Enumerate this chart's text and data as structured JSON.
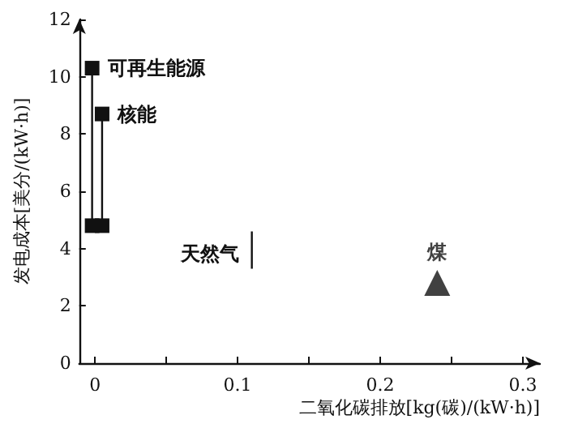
{
  "chart_data": {
    "type": "scatter",
    "xlabel": "二氧化碳排放[kg(碳)/(kW·h)]",
    "ylabel": "发电成本[美分/(kW·h)]",
    "xlim": [
      -0.011,
      0.312
    ],
    "ylim": [
      0,
      12
    ],
    "xticks": [
      0,
      {
        "value": 0.05,
        "label": null
      },
      0.1,
      {
        "value": 0.15,
        "label": null
      },
      0.2,
      {
        "value": 0.25,
        "label": null
      },
      0.3
    ],
    "yticks": [
      0,
      2,
      4,
      6,
      8,
      10,
      12
    ],
    "grid": false,
    "legend": false,
    "series": [
      {
        "name": "可再生能源",
        "type": "line",
        "marker": "square",
        "color": "#111111",
        "x": [
          -0.002,
          -0.002
        ],
        "values": [
          4.8,
          10.3
        ]
      },
      {
        "name": "核能",
        "type": "line",
        "marker": "square",
        "color": "#111111",
        "x": [
          0.005,
          0.005
        ],
        "values": [
          4.8,
          8.7
        ]
      },
      {
        "name": "天然气",
        "type": "line",
        "marker": "none",
        "color": "#111111",
        "x": [
          0.11,
          0.11
        ],
        "values": [
          3.3,
          4.6
        ]
      },
      {
        "name": "煤",
        "marker": "triangle",
        "color": "#111111",
        "x": [
          0.24
        ],
        "values": [
          2.8
        ]
      }
    ]
  }
}
